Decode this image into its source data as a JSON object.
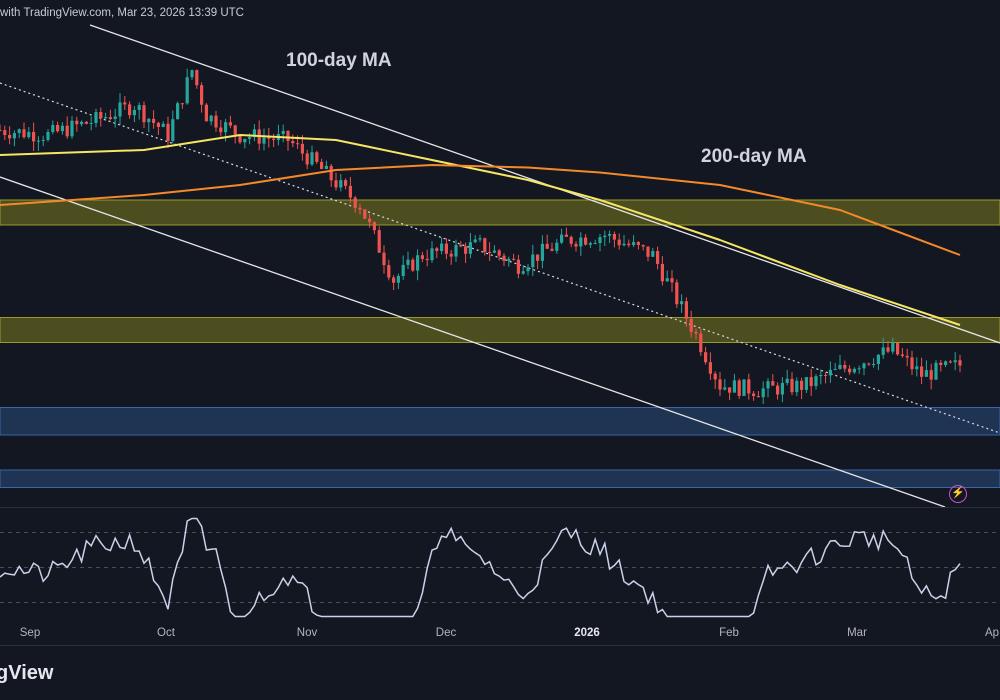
{
  "header": {
    "text": "with TradingView.com, Mar 23, 2026 13:39 UTC"
  },
  "watermark": "gView",
  "annotations": {
    "ma100": "100-day MA",
    "ma200": "200-day MA"
  },
  "icons": {
    "alert": "lightning-bolt-icon"
  },
  "colors": {
    "background": "#131722",
    "up": "#26a69a",
    "down": "#ef5350",
    "ma100": "#f5e663",
    "ma200": "#f5892a",
    "supply_zone": "#6b6b1e",
    "demand_zone": "#2a4a7a",
    "rsi": "#c8d3ea",
    "channel": "#e6e6e6"
  },
  "chart_data": [
    {
      "type": "line",
      "subtype": "candlestick",
      "title": "",
      "xlabel": "",
      "ylabel": "",
      "x_ticks": [
        "Sep",
        "Oct",
        "Nov",
        "Dec",
        "2026",
        "Feb",
        "Mar",
        "Ap"
      ],
      "series": [
        {
          "name": "100-day MA",
          "x": [
            0,
            30,
            50,
            70,
            90,
            110,
            125,
            150,
            175,
            200
          ],
          "values": [
            0.7,
            0.71,
            0.74,
            0.73,
            0.69,
            0.65,
            0.61,
            0.53,
            0.44,
            0.36
          ]
        },
        {
          "name": "200-day MA",
          "x": [
            0,
            30,
            50,
            70,
            90,
            110,
            125,
            150,
            175,
            200
          ],
          "values": [
            0.6,
            0.62,
            0.64,
            0.67,
            0.68,
            0.675,
            0.665,
            0.64,
            0.59,
            0.5
          ]
        }
      ],
      "zones": [
        {
          "label": "resistance-zone-upper",
          "range": [
            0.56,
            0.61
          ]
        },
        {
          "label": "resistance-zone-lower",
          "range": [
            0.325,
            0.375
          ]
        },
        {
          "label": "support-zone-upper",
          "range": [
            0.14,
            0.195
          ]
        },
        {
          "label": "support-zone-lower",
          "range": [
            0.035,
            0.07
          ]
        }
      ]
    },
    {
      "type": "line",
      "title": "",
      "xlabel": "",
      "ylabel": "",
      "series": [
        {
          "name": "RSI"
        }
      ],
      "levels": [
        70,
        50,
        30
      ]
    }
  ]
}
